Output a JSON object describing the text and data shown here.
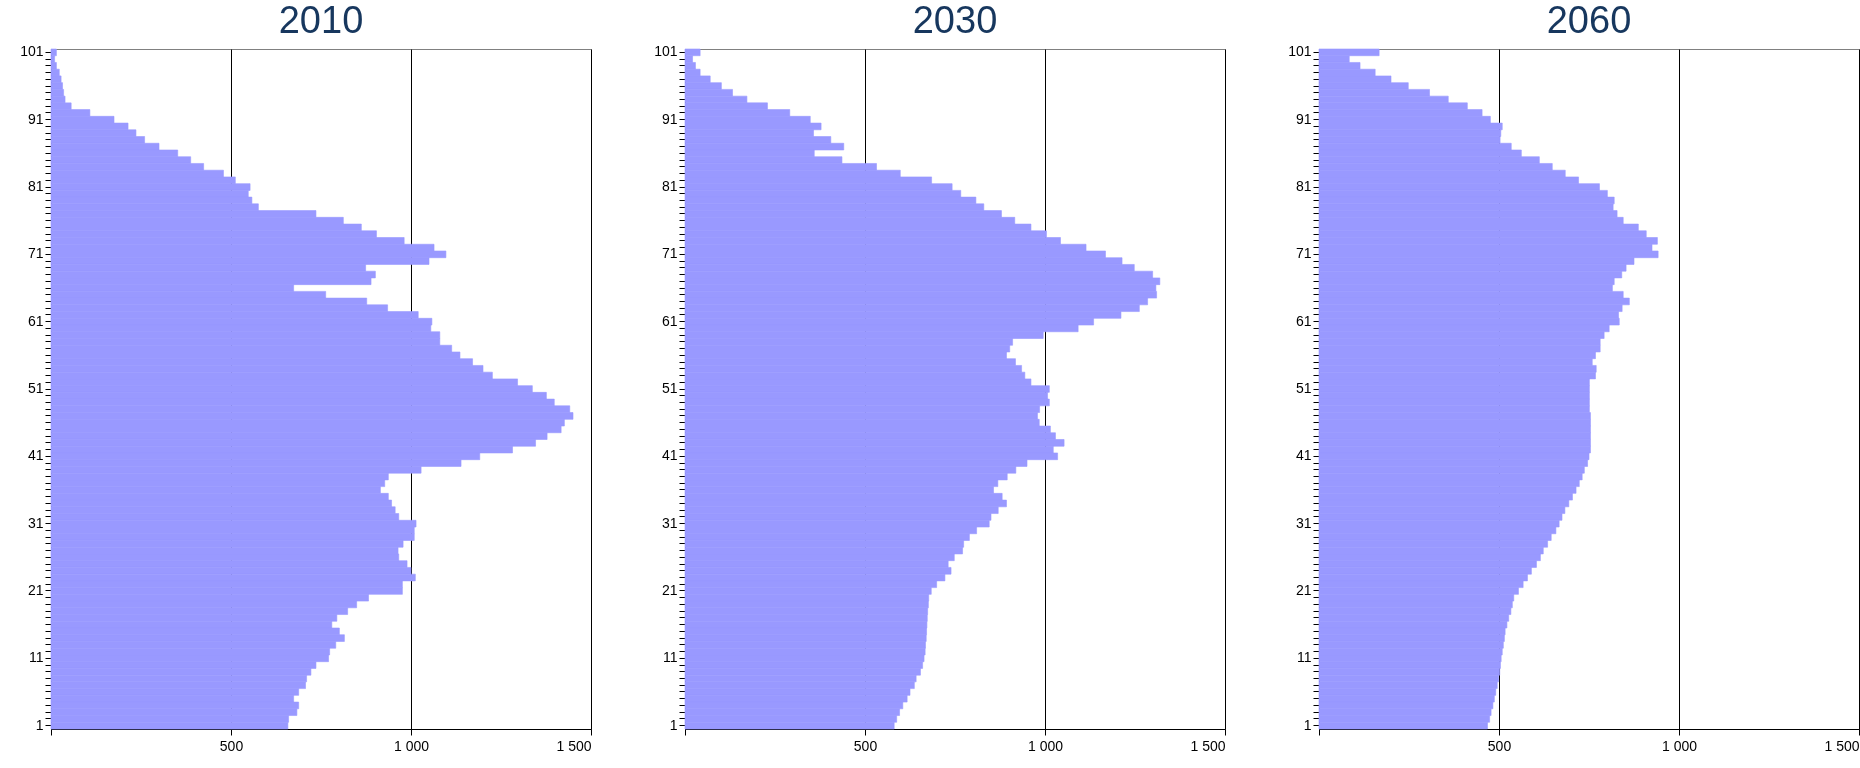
{
  "chart_data": [
    {
      "type": "bar",
      "orientation": "horizontal",
      "title": "2010",
      "color": "#9999ff",
      "grid": "x",
      "xlim": [
        0,
        1500
      ],
      "xticks": [
        {
          "value": 0,
          "label": null
        },
        {
          "value": 500,
          "label": "500"
        },
        {
          "value": 1000,
          "label": "1 000"
        },
        {
          "value": 1500,
          "label": "1 500"
        }
      ],
      "categories": [
        "101",
        null,
        null,
        null,
        null,
        null,
        null,
        null,
        null,
        null,
        "91",
        null,
        null,
        null,
        null,
        null,
        null,
        null,
        null,
        null,
        "81",
        null,
        null,
        null,
        null,
        null,
        null,
        null,
        null,
        null,
        "71",
        null,
        null,
        null,
        null,
        null,
        null,
        null,
        null,
        null,
        "61",
        null,
        null,
        null,
        null,
        null,
        null,
        null,
        null,
        null,
        "51",
        null,
        null,
        null,
        null,
        null,
        null,
        null,
        null,
        null,
        "41",
        null,
        null,
        null,
        null,
        null,
        null,
        null,
        null,
        null,
        "31",
        null,
        null,
        null,
        null,
        null,
        null,
        null,
        null,
        null,
        "21",
        null,
        null,
        null,
        null,
        null,
        null,
        null,
        null,
        null,
        "11",
        null,
        null,
        null,
        null,
        null,
        null,
        null,
        null,
        null,
        "1"
      ],
      "values": [
        15,
        10,
        15,
        23,
        28,
        32,
        35,
        39,
        56,
        108,
        175,
        214,
        236,
        260,
        300,
        352,
        388,
        424,
        479,
        512,
        553,
        548,
        558,
        576,
        736,
        812,
        862,
        904,
        981,
        1064,
        1097,
        1050,
        874,
        901,
        889,
        674,
        763,
        877,
        935,
        1020,
        1058,
        1055,
        1080,
        1080,
        1113,
        1136,
        1171,
        1200,
        1226,
        1296,
        1337,
        1376,
        1398,
        1441,
        1450,
        1426,
        1417,
        1378,
        1346,
        1282,
        1191,
        1139,
        1028,
        937,
        927,
        915,
        937,
        946,
        956,
        966,
        1014,
        1009,
        1009,
        978,
        964,
        966,
        989,
        1000,
        1012,
        976,
        976,
        882,
        849,
        824,
        794,
        780,
        801,
        815,
        791,
        774,
        771,
        736,
        722,
        710,
        707,
        688,
        674,
        688,
        683,
        660,
        658
      ]
    },
    {
      "type": "bar",
      "orientation": "horizontal",
      "title": "2030",
      "color": "#9999ff",
      "grid": "x",
      "xlim": [
        0,
        1500
      ],
      "xticks": [
        {
          "value": 0,
          "label": null
        },
        {
          "value": 500,
          "label": "500"
        },
        {
          "value": 1000,
          "label": "1 000"
        },
        {
          "value": 1500,
          "label": "1 500"
        }
      ],
      "categories": [
        "101",
        null,
        null,
        null,
        null,
        null,
        null,
        null,
        null,
        null,
        "91",
        null,
        null,
        null,
        null,
        null,
        null,
        null,
        null,
        null,
        "81",
        null,
        null,
        null,
        null,
        null,
        null,
        null,
        null,
        null,
        "71",
        null,
        null,
        null,
        null,
        null,
        null,
        null,
        null,
        null,
        "61",
        null,
        null,
        null,
        null,
        null,
        null,
        null,
        null,
        null,
        "51",
        null,
        null,
        null,
        null,
        null,
        null,
        null,
        null,
        null,
        "41",
        null,
        null,
        null,
        null,
        null,
        null,
        null,
        null,
        null,
        "31",
        null,
        null,
        null,
        null,
        null,
        null,
        null,
        null,
        null,
        "21",
        null,
        null,
        null,
        null,
        null,
        null,
        null,
        null,
        null,
        "11",
        null,
        null,
        null,
        null,
        null,
        null,
        null,
        null,
        null,
        "1"
      ],
      "values": [
        42,
        21,
        29,
        42,
        70,
        101,
        132,
        172,
        229,
        291,
        348,
        378,
        357,
        405,
        441,
        359,
        436,
        532,
        598,
        685,
        742,
        766,
        808,
        830,
        879,
        916,
        961,
        1004,
        1043,
        1114,
        1168,
        1214,
        1248,
        1299,
        1319,
        1308,
        1310,
        1285,
        1262,
        1211,
        1135,
        1092,
        995,
        910,
        902,
        893,
        918,
        935,
        944,
        961,
        1012,
        1007,
        1012,
        985,
        979,
        984,
        1015,
        1029,
        1053,
        1023,
        1035,
        950,
        919,
        895,
        869,
        857,
        881,
        893,
        870,
        850,
        845,
        810,
        790,
        774,
        771,
        748,
        731,
        739,
        722,
        699,
        684,
        677,
        676,
        674,
        673,
        672,
        671,
        670,
        668,
        667,
        664,
        660,
        654,
        642,
        637,
        625,
        617,
        605,
        596,
        588,
        581
      ]
    },
    {
      "type": "bar",
      "orientation": "horizontal",
      "title": "2060",
      "color": "#9999ff",
      "grid": "x",
      "xlim": [
        0,
        1500
      ],
      "xticks": [
        {
          "value": 0,
          "label": null
        },
        {
          "value": 500,
          "label": "500"
        },
        {
          "value": 1000,
          "label": "1 000"
        },
        {
          "value": 1500,
          "label": "1 500"
        }
      ],
      "categories": [
        "101",
        null,
        null,
        null,
        null,
        null,
        null,
        null,
        null,
        null,
        "91",
        null,
        null,
        null,
        null,
        null,
        null,
        null,
        null,
        null,
        "81",
        null,
        null,
        null,
        null,
        null,
        null,
        null,
        null,
        null,
        "71",
        null,
        null,
        null,
        null,
        null,
        null,
        null,
        null,
        null,
        "61",
        null,
        null,
        null,
        null,
        null,
        null,
        null,
        null,
        null,
        "51",
        null,
        null,
        null,
        null,
        null,
        null,
        null,
        null,
        null,
        "41",
        null,
        null,
        null,
        null,
        null,
        null,
        null,
        null,
        null,
        "31",
        null,
        null,
        null,
        null,
        null,
        null,
        null,
        null,
        null,
        "21",
        null,
        null,
        null,
        null,
        null,
        null,
        null,
        null,
        null,
        "11",
        null,
        null,
        null,
        null,
        null,
        null,
        null,
        null,
        null,
        "1"
      ],
      "values": [
        167,
        84,
        114,
        156,
        200,
        248,
        307,
        359,
        412,
        453,
        476,
        509,
        505,
        503,
        534,
        562,
        612,
        648,
        684,
        721,
        779,
        801,
        820,
        817,
        828,
        845,
        887,
        909,
        940,
        925,
        942,
        875,
        853,
        841,
        820,
        815,
        845,
        862,
        842,
        832,
        834,
        806,
        792,
        781,
        781,
        768,
        759,
        770,
        768,
        751,
        751,
        751,
        751,
        751,
        754,
        754,
        754,
        754,
        754,
        754,
        750,
        746,
        737,
        731,
        723,
        714,
        704,
        694,
        683,
        675,
        667,
        658,
        645,
        635,
        623,
        615,
        604,
        590,
        579,
        567,
        554,
        541,
        537,
        533,
        527,
        522,
        517,
        515,
        512,
        509,
        506,
        504,
        502,
        499,
        495,
        491,
        487,
        483,
        478,
        474,
        468
      ]
    }
  ]
}
